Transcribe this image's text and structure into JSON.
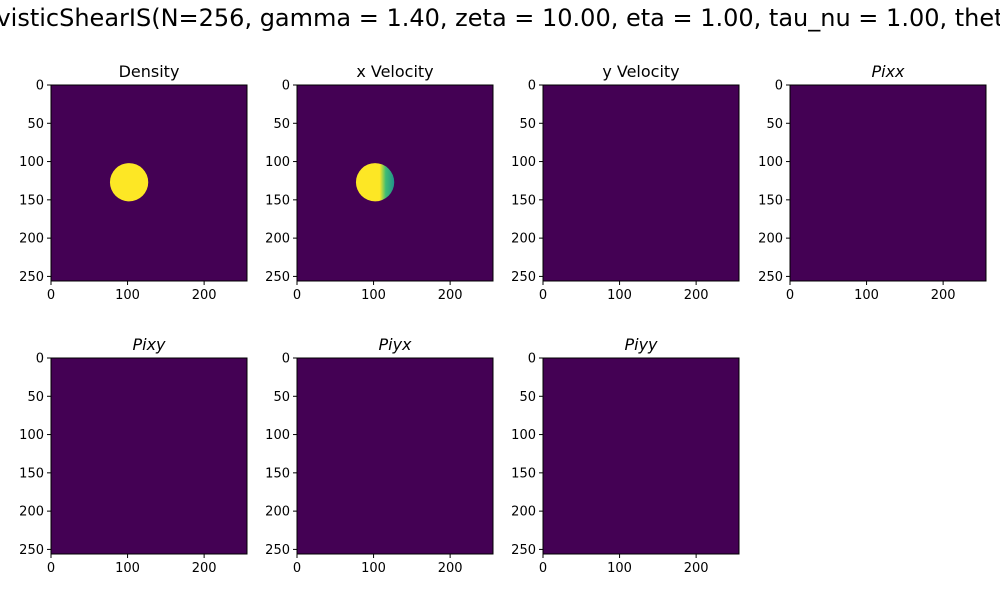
{
  "figure": {
    "suptitle": "visticShearIS(N=256, gamma = 1.40, zeta = 10.00, eta = 1.00, tau_nu = 1.00, thet"
  },
  "colors": {
    "background_low": "#440154",
    "field_high": "#fde725",
    "teal": "#21918c",
    "green_teal": "#3fbc73"
  },
  "chart_data": [
    {
      "type": "heatmap",
      "title": "Density",
      "title_style": "normal",
      "grid_size": 256,
      "xlim": [
        0,
        256
      ],
      "ylim": [
        256,
        0
      ],
      "xticks": [
        0,
        100,
        200
      ],
      "yticks": [
        0,
        50,
        100,
        150,
        200,
        250
      ],
      "background_value": "low",
      "features": [
        {
          "shape": "disk",
          "center": [
            102,
            127
          ],
          "radius": 25,
          "value": "high"
        }
      ]
    },
    {
      "type": "heatmap",
      "title": "x Velocity",
      "title_style": "normal",
      "grid_size": 256,
      "xlim": [
        0,
        256
      ],
      "ylim": [
        256,
        0
      ],
      "xticks": [
        0,
        100,
        200
      ],
      "yticks": [
        0,
        50,
        100,
        150,
        200,
        250
      ],
      "background_value": "low",
      "features": [
        {
          "shape": "disk",
          "center": [
            102,
            127
          ],
          "radius": 25,
          "value": "high",
          "right_edge_gradient": "teal"
        }
      ]
    },
    {
      "type": "heatmap",
      "title": "y Velocity",
      "title_style": "normal",
      "grid_size": 256,
      "xlim": [
        0,
        256
      ],
      "ylim": [
        256,
        0
      ],
      "xticks": [
        0,
        100,
        200
      ],
      "yticks": [
        0,
        50,
        100,
        150,
        200,
        250
      ],
      "background_value": "low",
      "features": []
    },
    {
      "type": "heatmap",
      "title": "Pixx",
      "title_style": "italic",
      "grid_size": 256,
      "xlim": [
        0,
        256
      ],
      "ylim": [
        256,
        0
      ],
      "xticks": [
        0,
        100,
        200
      ],
      "yticks": [
        0,
        50,
        100,
        150,
        200,
        250
      ],
      "background_value": "low",
      "features": []
    },
    {
      "type": "heatmap",
      "title": "Pixy",
      "title_style": "italic",
      "grid_size": 256,
      "xlim": [
        0,
        256
      ],
      "ylim": [
        256,
        0
      ],
      "xticks": [
        0,
        100,
        200
      ],
      "yticks": [
        0,
        50,
        100,
        150,
        200,
        250
      ],
      "background_value": "low",
      "features": []
    },
    {
      "type": "heatmap",
      "title": "Piyx",
      "title_style": "italic",
      "grid_size": 256,
      "xlim": [
        0,
        256
      ],
      "ylim": [
        256,
        0
      ],
      "xticks": [
        0,
        100,
        200
      ],
      "yticks": [
        0,
        50,
        100,
        150,
        200,
        250
      ],
      "background_value": "low",
      "features": []
    },
    {
      "type": "heatmap",
      "title": "Piyy",
      "title_style": "italic",
      "grid_size": 256,
      "xlim": [
        0,
        256
      ],
      "ylim": [
        256,
        0
      ],
      "xticks": [
        0,
        100,
        200
      ],
      "yticks": [
        0,
        50,
        100,
        150,
        200,
        250
      ],
      "background_value": "low",
      "features": []
    }
  ]
}
